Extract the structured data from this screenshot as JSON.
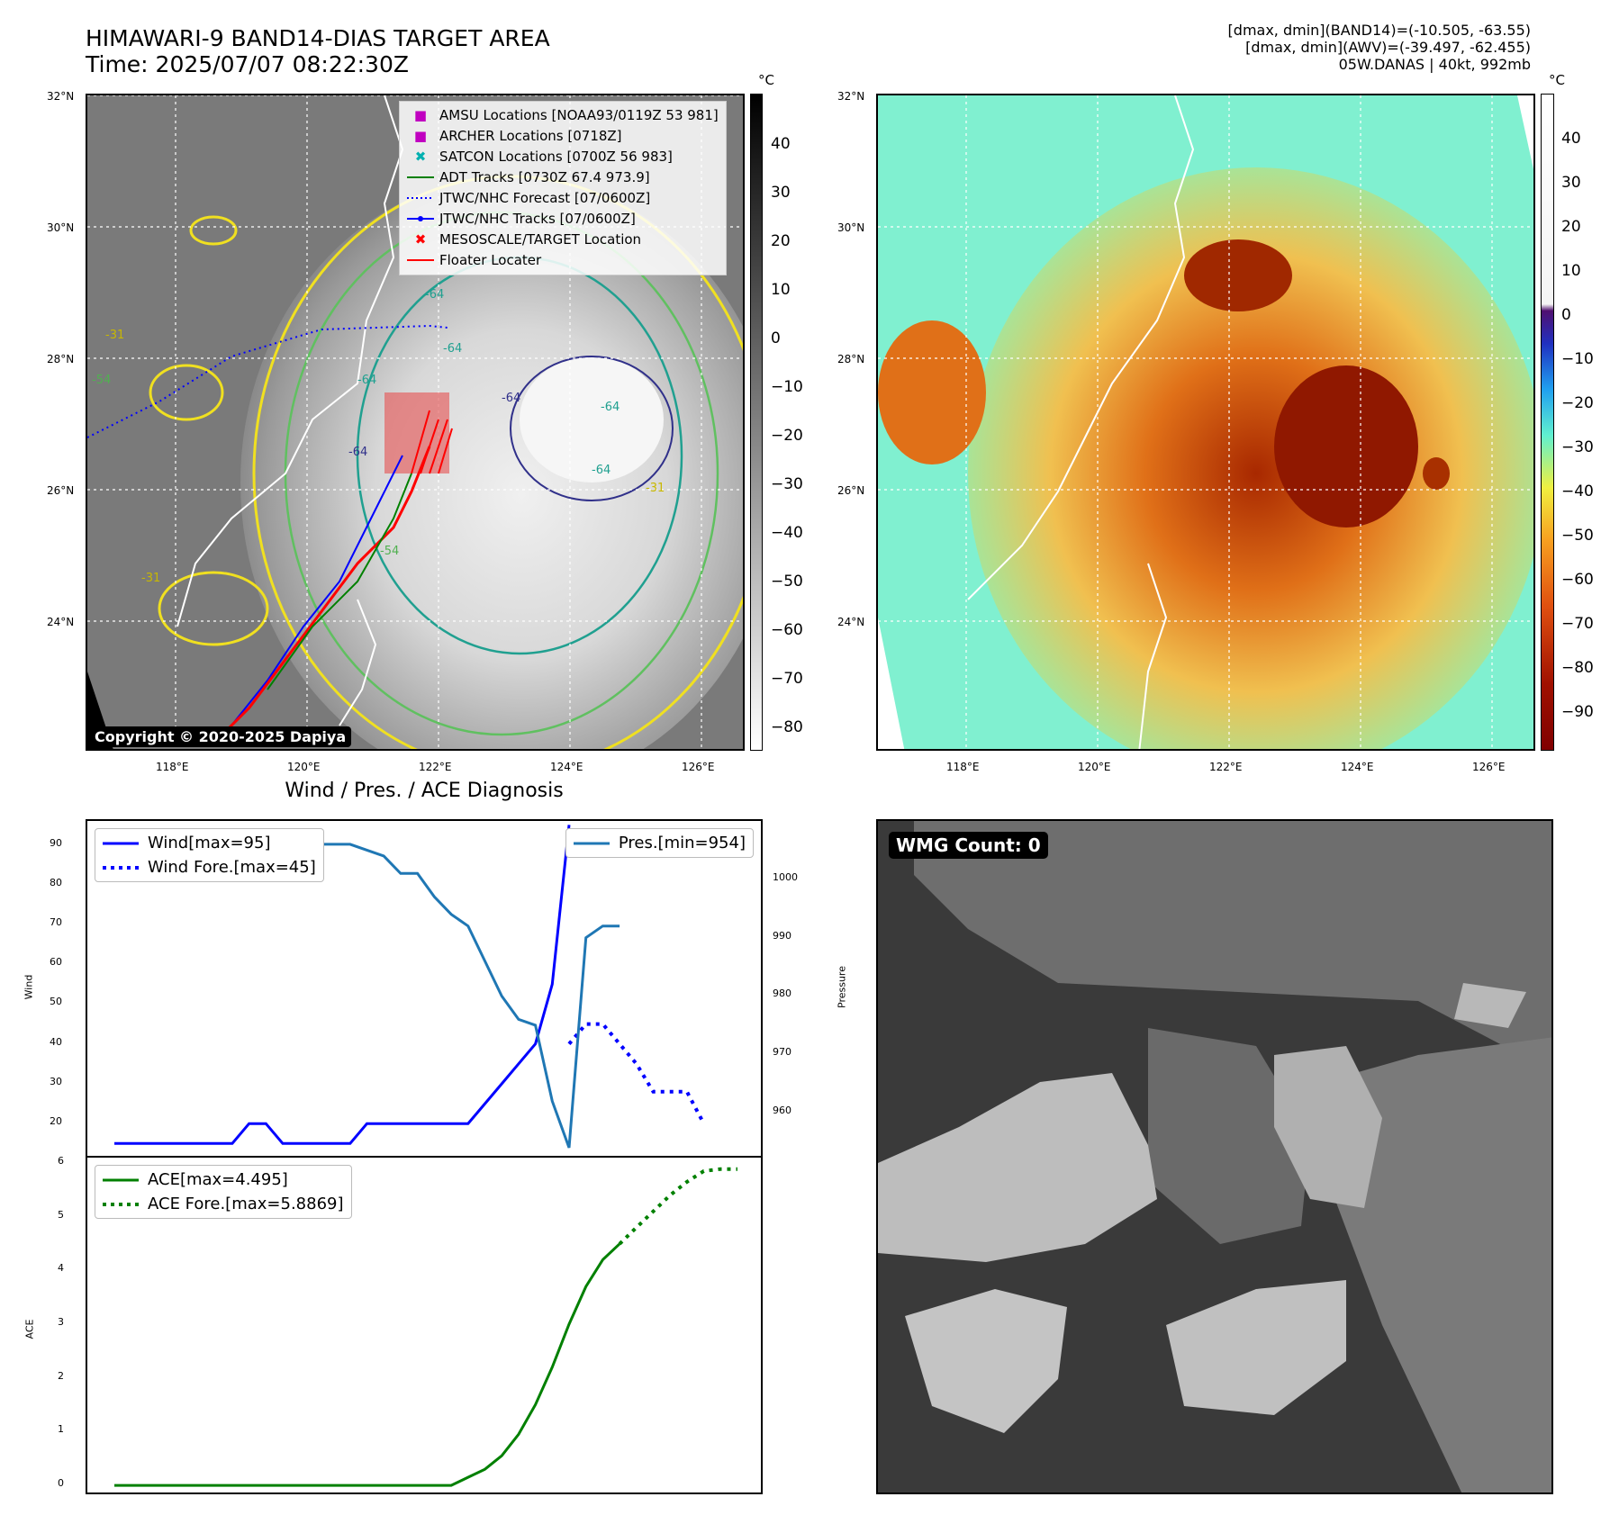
{
  "header": {
    "title_line1": "HIMAWARI-9 BAND14-DIAS TARGET AREA",
    "title_line2": "Time: 2025/07/07 08:22:30Z",
    "info_line1": "[dmax, dmin](BAND14)=(-10.505, -63.55)",
    "info_line2": "[dmax, dmin](AWV)=(-39.497, -62.455)",
    "info_line3": "05W.DANAS | 40kt, 992mb"
  },
  "map": {
    "lat_labels": [
      "32°N",
      "30°N",
      "28°N",
      "26°N",
      "24°N"
    ],
    "lon_labels": [
      "118°E",
      "120°E",
      "122°E",
      "124°E",
      "126°E"
    ],
    "copyright": "Copyright © 2020-2025 Dapiya",
    "contour_labels": [
      "-64",
      "-64",
      "-64",
      "-64",
      "-64",
      "-31",
      "-31",
      "-31",
      "-54",
      "-54",
      "-64",
      "-64"
    ],
    "legend": [
      {
        "label": "AMSU Locations [NOAA93/0119Z 53 981]",
        "symbol": "■",
        "color": "#c000c0"
      },
      {
        "label": "ARCHER Locations [0718Z]",
        "symbol": "■",
        "color": "#c000c0"
      },
      {
        "label": "SATCON Locations [0700Z 56 983]",
        "symbol": "✖",
        "color": "#00b0b0"
      },
      {
        "label": "ADT Tracks [0730Z 67.4 973.9]",
        "symbol": "line",
        "color": "#008000"
      },
      {
        "label": "JTWC/NHC Forecast [07/0600Z]",
        "symbol": "dotted",
        "color": "#0000ff"
      },
      {
        "label": "JTWC/NHC Tracks [07/0600Z]",
        "symbol": "dotline",
        "color": "#0000ff"
      },
      {
        "label": "MESOSCALE/TARGET Location",
        "symbol": "✖",
        "color": "#ff0000"
      },
      {
        "label": "Floater Locater",
        "symbol": "line",
        "color": "#ff0000"
      }
    ]
  },
  "colorbar1": {
    "unit": "°C",
    "ticks": [
      "40",
      "30",
      "20",
      "10",
      "0",
      "−10",
      "−20",
      "−30",
      "−40",
      "−50",
      "−60",
      "−70",
      "−80"
    ]
  },
  "colorbar2": {
    "unit": "°C",
    "ticks": [
      "40",
      "30",
      "20",
      "10",
      "0",
      "−10",
      "−20",
      "−30",
      "−40",
      "−50",
      "−60",
      "−70",
      "−80",
      "−90"
    ]
  },
  "diagnosis": {
    "title": "Wind / Pres. / ACE Diagnosis"
  },
  "wmg": {
    "label": "WMG Count: 0"
  },
  "chart_data": [
    {
      "type": "line",
      "title": "Wind / Pres. / ACE Diagnosis",
      "ylabel": "Wind",
      "y2label": "Pressure",
      "ylim": [
        11,
        96
      ],
      "y2lim": [
        952,
        1010
      ],
      "yticks": [
        "20",
        "30",
        "40",
        "50",
        "60",
        "70",
        "80",
        "90"
      ],
      "y2ticks": [
        "960",
        "970",
        "980",
        "990",
        "1000"
      ],
      "series": [
        {
          "name": "Wind[max=95]",
          "axis": "left",
          "color": "#0000ff",
          "style": "solid",
          "x": [
            0,
            1,
            2,
            3,
            4,
            5,
            6,
            7,
            8,
            9,
            10,
            11,
            12,
            13,
            14,
            15,
            16,
            17,
            18,
            19,
            20,
            21,
            22,
            23,
            24,
            25,
            26,
            27
          ],
          "values": [
            15,
            15,
            15,
            15,
            15,
            15,
            15,
            15,
            20,
            20,
            15,
            15,
            15,
            15,
            15,
            20,
            20,
            20,
            20,
            20,
            20,
            20,
            25,
            30,
            35,
            40,
            55,
            95
          ]
        },
        {
          "name": "Wind Fore.[max=45]",
          "axis": "left",
          "color": "#0000ff",
          "style": "dotted",
          "x": [
            27,
            28,
            29,
            30,
            31,
            32,
            33,
            34,
            35
          ],
          "values": [
            40,
            45,
            45,
            40,
            35,
            28,
            28,
            28,
            20
          ]
        },
        {
          "name": "Pres.[min=954]",
          "axis": "right",
          "color": "#1f77b4",
          "style": "solid",
          "x": [
            0,
            1,
            2,
            3,
            4,
            5,
            6,
            7,
            8,
            9,
            10,
            11,
            12,
            13,
            14,
            15,
            16,
            17,
            18,
            19,
            20,
            21,
            22,
            23,
            24,
            25,
            26,
            27,
            28,
            29,
            30
          ],
          "values": [
            1008,
            1008,
            1008,
            1008,
            1005,
            1005,
            1005,
            1005,
            1006,
            1006,
            1007,
            1007,
            1006,
            1006,
            1006,
            1005,
            1004,
            1001,
            1001,
            997,
            994,
            992,
            986,
            980,
            976,
            975,
            962,
            954,
            990,
            992,
            992
          ]
        }
      ]
    },
    {
      "type": "line",
      "ylabel": "ACE",
      "ylim": [
        -0.2,
        6.1
      ],
      "yticks": [
        "0",
        "1",
        "2",
        "3",
        "4",
        "5",
        "6"
      ],
      "series": [
        {
          "name": "ACE[max=4.495]",
          "color": "#008000",
          "style": "solid",
          "x": [
            0,
            2,
            4,
            6,
            8,
            10,
            12,
            14,
            16,
            18,
            20,
            21,
            22,
            23,
            24,
            25,
            26,
            27,
            28,
            29,
            30
          ],
          "values": [
            0,
            0,
            0,
            0,
            0,
            0,
            0,
            0,
            0,
            0,
            0,
            0.15,
            0.3,
            0.55,
            0.95,
            1.5,
            2.2,
            3.0,
            3.7,
            4.2,
            4.495
          ]
        },
        {
          "name": "ACE Fore.[max=5.8869]",
          "color": "#008000",
          "style": "dotted",
          "x": [
            30,
            31,
            32,
            33,
            34,
            35,
            36,
            37
          ],
          "values": [
            4.495,
            4.8,
            5.1,
            5.4,
            5.65,
            5.85,
            5.8869,
            5.8869
          ]
        }
      ]
    }
  ]
}
